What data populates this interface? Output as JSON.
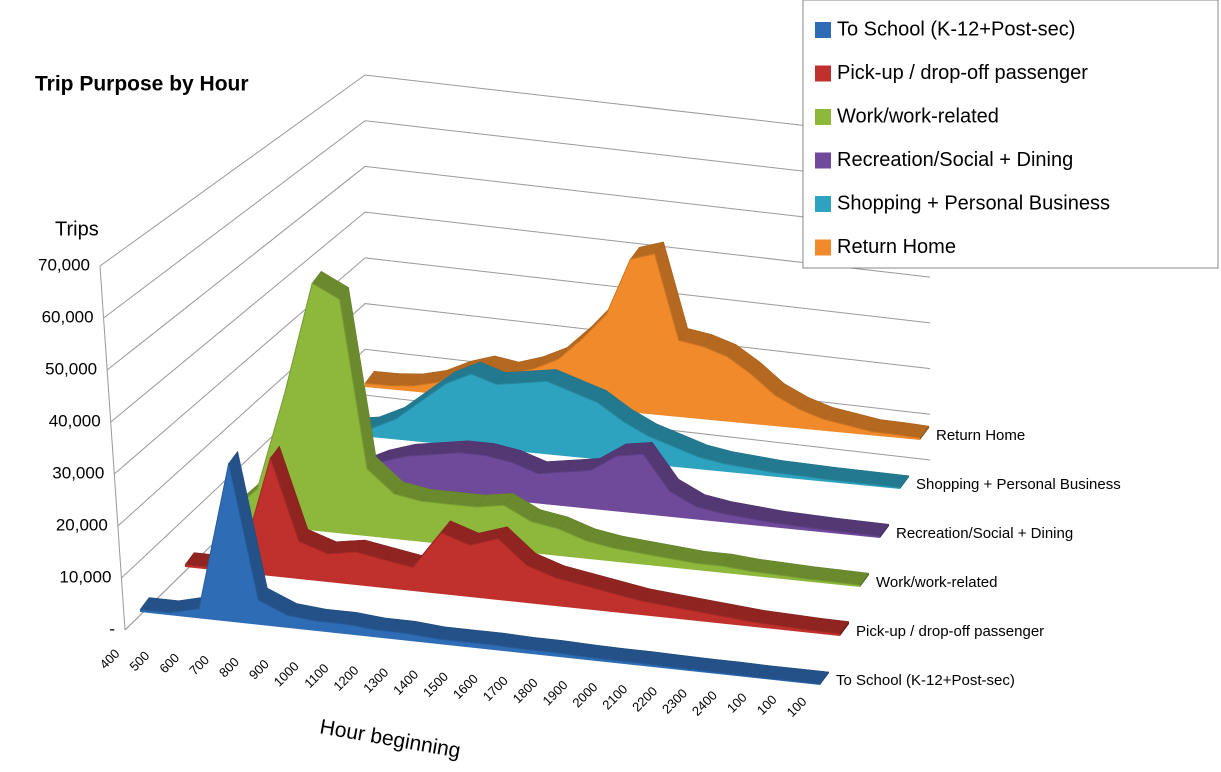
{
  "chart_data": {
    "type": "area3d",
    "title": "Trip Purpose by Hour",
    "y_label": "Trips",
    "x_label": "Hour beginning",
    "categories": [
      "400",
      "500",
      "600",
      "700",
      "800",
      "900",
      "1000",
      "1100",
      "1200",
      "1300",
      "1400",
      "1500",
      "1600",
      "1700",
      "1800",
      "1900",
      "2000",
      "2100",
      "2200",
      "2300",
      "2400",
      "100",
      "100",
      "100"
    ],
    "series": [
      {
        "name": "To School (K-12+Post-sec)",
        "color": "#2e6cb5",
        "values": [
          500,
          500,
          2000,
          32000,
          5000,
          2500,
          2000,
          2000,
          1500,
          1500,
          1000,
          1000,
          1000,
          800,
          800,
          600,
          500,
          500,
          400,
          300,
          300,
          200,
          200,
          200
        ]
      },
      {
        "name": "Pick-up / drop-off passenger",
        "color": "#c0302c",
        "values": [
          500,
          500,
          3000,
          25000,
          8000,
          6000,
          7000,
          6000,
          5000,
          13000,
          11000,
          13000,
          8000,
          6000,
          5000,
          4000,
          3000,
          2500,
          2000,
          1500,
          1000,
          800,
          600,
          500
        ]
      },
      {
        "name": "Work/work-related",
        "color": "#8db83c",
        "values": [
          2000,
          8000,
          30000,
          55000,
          52000,
          15000,
          10000,
          9000,
          9000,
          9000,
          10000,
          7000,
          6000,
          4000,
          3000,
          2500,
          2000,
          1500,
          1500,
          1000,
          800,
          600,
          500,
          400
        ]
      },
      {
        "name": "Recreation/Social + Dining",
        "color": "#6f4a9b",
        "values": [
          500,
          500,
          1000,
          3000,
          6000,
          8000,
          9000,
          10000,
          10000,
          9000,
          7000,
          8000,
          9000,
          13000,
          14000,
          6000,
          3000,
          2000,
          1500,
          1000,
          800,
          600,
          500,
          400
        ]
      },
      {
        "name": "Shopping + Personal Business",
        "color": "#2ea3c0",
        "values": [
          500,
          1000,
          2000,
          5000,
          10000,
          15000,
          18000,
          16000,
          17000,
          18000,
          16000,
          14000,
          10000,
          7000,
          5000,
          3000,
          2000,
          1500,
          1000,
          800,
          600,
          500,
          400,
          300
        ]
      },
      {
        "name": "Return Home",
        "color": "#f08a2a",
        "values": [
          1000,
          1000,
          1500,
          3000,
          6000,
          8000,
          7000,
          9000,
          12000,
          18000,
          25000,
          40000,
          42000,
          20000,
          19000,
          17000,
          13000,
          8000,
          5000,
          3000,
          2000,
          1000,
          800,
          500
        ]
      }
    ],
    "ylim": [
      0,
      70000
    ],
    "yticks": [
      {
        "value": 0,
        "label": "-"
      },
      {
        "value": 10000,
        "label": "10,000"
      },
      {
        "value": 20000,
        "label": "20,000"
      },
      {
        "value": 30000,
        "label": "30,000"
      },
      {
        "value": 40000,
        "label": "40,000"
      },
      {
        "value": 50000,
        "label": "50,000"
      },
      {
        "value": 60000,
        "label": "60,000"
      },
      {
        "value": 70000,
        "label": "70,000"
      }
    ],
    "grid": true,
    "legend": "top-right"
  }
}
